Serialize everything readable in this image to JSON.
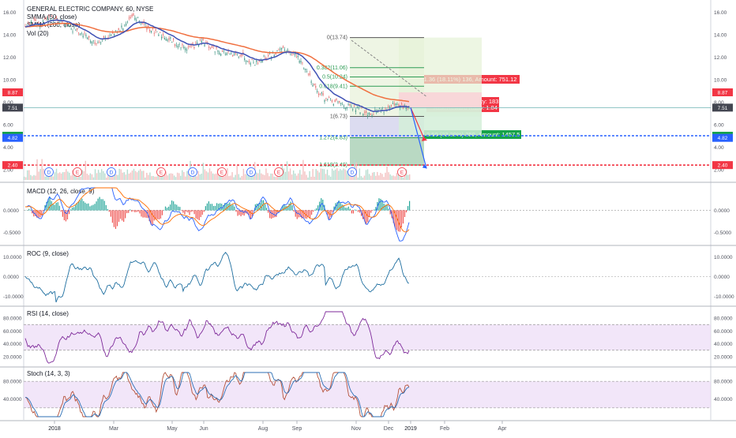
{
  "title": "GENERAL ELECTRIC COMPANY, 60, NYSE",
  "indicators": [
    "SMMA (50, close)",
    "SMMA (200, close)",
    "Vol (20)"
  ],
  "colors": {
    "candle": "#4a9a8a",
    "smma50": "#3f51b5",
    "smma200": "#f07040",
    "macd": "#2962ff",
    "signal": "#ff6d00",
    "roc": "#1f6fa0",
    "rsi": "#7e2a9a",
    "stoch_k": "#b5523b",
    "stoch_d": "#2c6fb5",
    "fill_band": "#e9d6f5",
    "stop_red": "#f23645",
    "target_green": "#16a34a",
    "price_tag": "#434651"
  },
  "chart_data": [
    {
      "type": "line",
      "panel": "price",
      "y_ticks": [
        "16.00",
        "14.00",
        "12.00",
        "10.00",
        "8.00",
        "6.00",
        "4.00",
        "2.00"
      ],
      "ylim": [
        1.5,
        16.8
      ],
      "x_ticks": [
        "2018",
        "Mar",
        "May",
        "Jun",
        "Aug",
        "Sep",
        "Nov",
        "Dec",
        "2019",
        "Feb",
        "Apr"
      ],
      "price_path": [
        [
          0,
          14.6
        ],
        [
          0.02,
          15.2
        ],
        [
          0.04,
          14.8
        ],
        [
          0.06,
          15.6
        ],
        [
          0.08,
          15.3
        ],
        [
          0.1,
          15.1
        ],
        [
          0.12,
          14.5
        ],
        [
          0.14,
          14.3
        ],
        [
          0.16,
          13.9
        ],
        [
          0.18,
          13.2
        ],
        [
          0.2,
          13.6
        ],
        [
          0.22,
          13.9
        ],
        [
          0.24,
          14.2
        ],
        [
          0.26,
          14.9
        ],
        [
          0.28,
          15.6
        ],
        [
          0.3,
          15.2
        ],
        [
          0.32,
          14.6
        ],
        [
          0.34,
          14.1
        ],
        [
          0.36,
          13.9
        ],
        [
          0.38,
          13.5
        ],
        [
          0.4,
          13.0
        ],
        [
          0.42,
          12.8
        ],
        [
          0.44,
          13.0
        ],
        [
          0.46,
          13.4
        ],
        [
          0.48,
          12.9
        ],
        [
          0.5,
          12.6
        ],
        [
          0.52,
          12.4
        ],
        [
          0.54,
          12.1
        ],
        [
          0.56,
          12.3
        ],
        [
          0.58,
          11.8
        ],
        [
          0.6,
          11.5
        ],
        [
          0.62,
          11.9
        ],
        [
          0.64,
          12.2
        ],
        [
          0.66,
          12.5
        ],
        [
          0.68,
          12.7
        ],
        [
          0.7,
          12.3
        ],
        [
          0.72,
          11.5
        ],
        [
          0.74,
          10.4
        ],
        [
          0.76,
          9.0
        ],
        [
          0.78,
          8.4
        ],
        [
          0.8,
          8.0
        ],
        [
          0.82,
          7.9
        ],
        [
          0.84,
          7.6
        ],
        [
          0.86,
          7.4
        ],
        [
          0.88,
          7.2
        ],
        [
          0.9,
          7.0
        ],
        [
          0.92,
          7.3
        ],
        [
          0.94,
          7.4
        ],
        [
          0.96,
          7.7
        ],
        [
          0.98,
          7.6
        ],
        [
          1.0,
          7.51
        ]
      ],
      "price_labels": [
        {
          "text": "8.87",
          "value": 8.87,
          "color": "#f23645"
        },
        {
          "text": "7.51",
          "value": 7.51,
          "color": "#434651"
        },
        {
          "text": "5.01",
          "value": 5.01,
          "color": "#16a34a"
        },
        {
          "text": "4.82",
          "value": 4.82,
          "color": "#2962ff"
        },
        {
          "text": "2.40",
          "value": 2.4,
          "color": "#f23645"
        }
      ],
      "fib_levels": [
        {
          "label": "0(13.74)",
          "value": 13.74
        },
        {
          "label": "0.382(11.06)",
          "value": 11.06
        },
        {
          "label": "0.5(10.24)",
          "value": 10.24
        },
        {
          "label": "0.618(9.41)",
          "value": 9.41
        },
        {
          "label": "1(6.73)",
          "value": 6.73
        },
        {
          "label": "1.272(4.83)",
          "value": 4.83
        },
        {
          "label": "1.618(2.40)",
          "value": 2.4
        }
      ],
      "position": {
        "stop_text": "Stop: 1.36 (18.11%) 136, Amount: 751.12",
        "open_text": "Open P&L: -0.01, Qty: 183",
        "rr_text": "Risk/Reward Ratio: 1.84",
        "target_text": "Target: 2.50 (33.29%) 250, Amount: 1457.5",
        "entry": 7.51,
        "stop": 8.87,
        "target": 5.01
      },
      "events": [
        "D",
        "E",
        "D",
        "E",
        "D",
        "E",
        "D",
        "E",
        "D",
        "E"
      ]
    },
    {
      "type": "line",
      "panel": "macd",
      "name": "MACD (12, 26, close, 9)",
      "y_ticks": [
        "0.0000",
        "-0.5000"
      ],
      "ylim": [
        -0.7,
        0.5
      ]
    },
    {
      "type": "line",
      "panel": "roc",
      "name": "ROC (9, close)",
      "y_ticks": [
        "10.0000",
        "0.0000",
        "-10.0000"
      ],
      "ylim": [
        -13,
        13
      ]
    },
    {
      "type": "line",
      "panel": "rsi",
      "name": "RSI (14, close)",
      "y_ticks": [
        "80.0000",
        "60.0000",
        "40.0000",
        "20.0000"
      ],
      "ylim": [
        10,
        90
      ],
      "band": [
        30,
        70
      ]
    },
    {
      "type": "line",
      "panel": "stoch",
      "name": "Stoch (14, 3, 3)",
      "y_ticks": [
        "80.0000",
        "40.0000"
      ],
      "ylim": [
        0,
        100
      ],
      "band": [
        20,
        80
      ]
    }
  ]
}
